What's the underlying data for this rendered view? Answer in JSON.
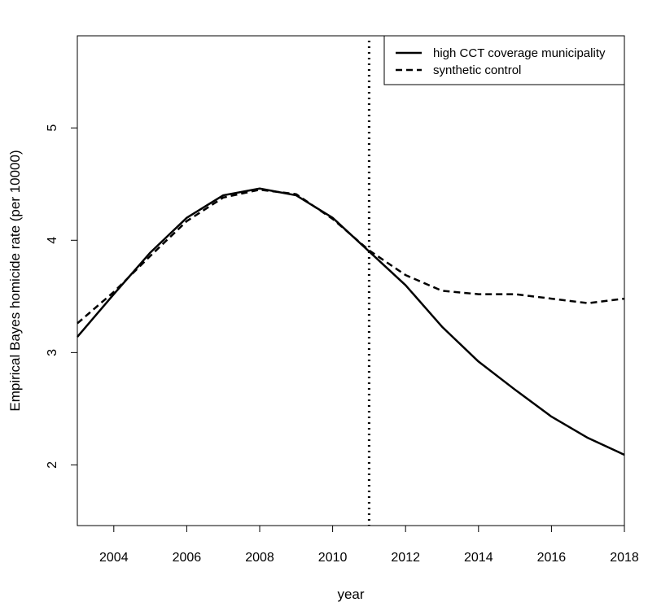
{
  "chart_data": {
    "type": "line",
    "title": "",
    "xlabel": "year",
    "ylabel": "Empirical Bayes homicide rate (per 10000)",
    "xlim": [
      2003,
      2018
    ],
    "ylim": [
      1.46,
      5.82
    ],
    "x_ticks": [
      2004,
      2006,
      2008,
      2010,
      2012,
      2014,
      2016,
      2018
    ],
    "y_ticks": [
      2,
      3,
      4,
      5
    ],
    "grid": false,
    "legend_position": "top-right",
    "reference_line": {
      "x": 2011,
      "style": "dotted"
    },
    "x": [
      2003,
      2004,
      2005,
      2006,
      2007,
      2008,
      2009,
      2010,
      2011,
      2012,
      2013,
      2014,
      2015,
      2016,
      2017,
      2018
    ],
    "series": [
      {
        "name": "high CCT coverage municipality",
        "style": "solid",
        "color": "#000000",
        "values": [
          3.14,
          3.52,
          3.89,
          4.2,
          4.4,
          4.46,
          4.4,
          4.2,
          3.9,
          3.6,
          3.23,
          2.92,
          2.67,
          2.43,
          2.24,
          2.09
        ]
      },
      {
        "name": "synthetic control",
        "style": "dashed",
        "color": "#000000",
        "values": [
          3.26,
          3.54,
          3.86,
          4.17,
          4.38,
          4.45,
          4.41,
          4.19,
          3.91,
          3.69,
          3.55,
          3.52,
          3.52,
          3.48,
          3.44,
          3.48
        ]
      }
    ]
  }
}
